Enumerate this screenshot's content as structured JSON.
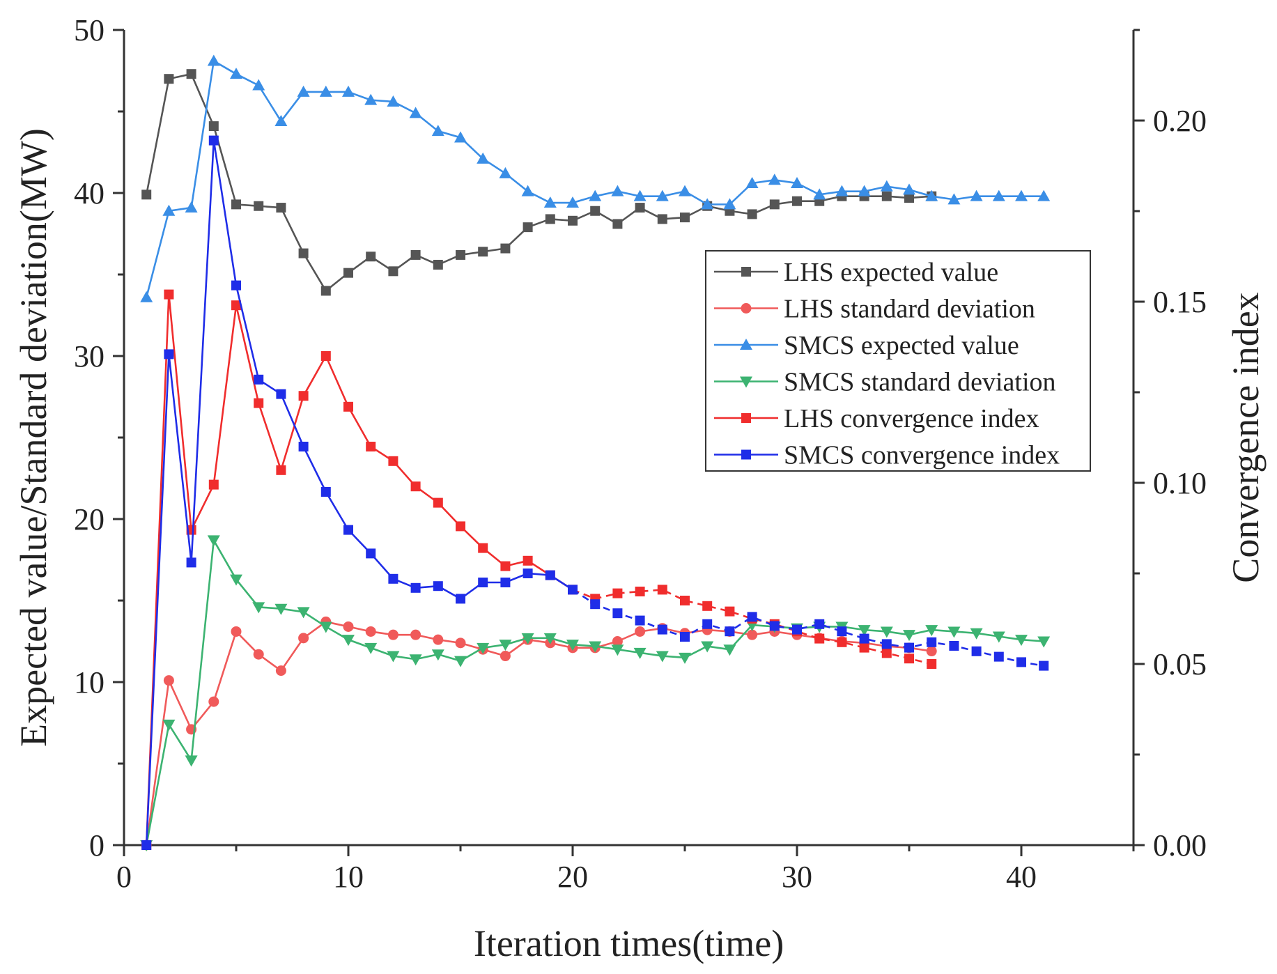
{
  "chart_data": {
    "type": "line",
    "title": "",
    "xlabel": "Iteration times(time)",
    "ylabel": "Expected value/Standard deviation(MW)",
    "y2label": "Convergence index",
    "xlim": [
      0,
      45
    ],
    "ylim": [
      0,
      50
    ],
    "y2lim": [
      0,
      0.225
    ],
    "x_ticks": [
      0,
      10,
      20,
      30,
      40
    ],
    "y_ticks": [
      0,
      10,
      20,
      30,
      40,
      50
    ],
    "y2_ticks": [
      0.0,
      0.05,
      0.1,
      0.15,
      0.2
    ],
    "y2_tick_labels": [
      "0.00",
      "0.05",
      "0.10",
      "0.15",
      "0.20"
    ],
    "legend_position": "center-right",
    "series": [
      {
        "name": "LHS expected value",
        "axis": "left",
        "color": "#555555",
        "marker": "square",
        "dashed_from_index": null,
        "x": [
          1,
          2,
          3,
          4,
          5,
          6,
          7,
          8,
          9,
          10,
          11,
          12,
          13,
          14,
          15,
          16,
          17,
          18,
          19,
          20,
          21,
          22,
          23,
          24,
          25,
          26,
          27,
          28,
          29,
          30,
          31,
          32,
          33,
          34,
          35,
          36
        ],
        "values": [
          39.9,
          47.0,
          47.3,
          44.1,
          39.3,
          39.2,
          39.1,
          36.3,
          34.0,
          35.1,
          36.1,
          35.2,
          36.2,
          35.6,
          36.2,
          36.4,
          36.6,
          37.9,
          38.4,
          38.3,
          38.9,
          38.1,
          39.1,
          38.4,
          38.5,
          39.2,
          38.9,
          38.7,
          39.3,
          39.5,
          39.5,
          39.8,
          39.8,
          39.8,
          39.7,
          39.8
        ]
      },
      {
        "name": "LHS standard deviation",
        "axis": "left",
        "color": "#f05a5a",
        "marker": "circle",
        "dashed_from_index": null,
        "x": [
          1,
          2,
          3,
          4,
          5,
          6,
          7,
          8,
          9,
          10,
          11,
          12,
          13,
          14,
          15,
          16,
          17,
          18,
          19,
          20,
          21,
          22,
          23,
          24,
          25,
          26,
          27,
          28,
          29,
          30,
          31,
          32,
          33,
          34,
          35,
          36
        ],
        "values": [
          0,
          10.1,
          7.1,
          8.8,
          13.1,
          11.7,
          10.7,
          12.7,
          13.7,
          13.4,
          13.1,
          12.9,
          12.9,
          12.6,
          12.4,
          12.0,
          11.6,
          12.6,
          12.4,
          12.1,
          12.1,
          12.5,
          13.1,
          13.3,
          13.0,
          13.2,
          13.1,
          12.9,
          13.1,
          12.9,
          12.7,
          12.5,
          12.4,
          12.2,
          12.1,
          11.9
        ]
      },
      {
        "name": "SMCS expected value",
        "axis": "left",
        "color": "#3a8ee6",
        "marker": "triangle-up",
        "dashed_from_index": null,
        "x": [
          1,
          2,
          3,
          4,
          5,
          6,
          7,
          8,
          9,
          10,
          11,
          12,
          13,
          14,
          15,
          16,
          17,
          18,
          19,
          20,
          21,
          22,
          23,
          24,
          25,
          26,
          27,
          28,
          29,
          30,
          31,
          32,
          33,
          34,
          35,
          36,
          37,
          38,
          39,
          40,
          41
        ],
        "values": [
          33.6,
          38.9,
          39.1,
          48.1,
          47.3,
          46.6,
          44.4,
          46.2,
          46.2,
          46.2,
          45.7,
          45.6,
          44.9,
          43.8,
          43.4,
          42.1,
          41.2,
          40.1,
          39.4,
          39.4,
          39.8,
          40.1,
          39.8,
          39.8,
          40.1,
          39.3,
          39.3,
          40.6,
          40.8,
          40.6,
          39.9,
          40.1,
          40.1,
          40.4,
          40.2,
          39.8,
          39.6,
          39.8,
          39.8,
          39.8,
          39.8
        ]
      },
      {
        "name": "SMCS standard deviation",
        "axis": "left",
        "color": "#3cb371",
        "marker": "triangle-down",
        "dashed_from_index": null,
        "x": [
          1,
          2,
          3,
          4,
          5,
          6,
          7,
          8,
          9,
          10,
          11,
          12,
          13,
          14,
          15,
          16,
          17,
          18,
          19,
          20,
          21,
          22,
          23,
          24,
          25,
          26,
          27,
          28,
          29,
          30,
          31,
          32,
          33,
          34,
          35,
          36,
          37,
          38,
          39,
          40,
          41
        ],
        "values": [
          0,
          7.4,
          5.2,
          18.7,
          16.3,
          14.6,
          14.5,
          14.3,
          13.4,
          12.6,
          12.1,
          11.6,
          11.4,
          11.7,
          11.3,
          12.1,
          12.3,
          12.7,
          12.7,
          12.3,
          12.2,
          12.0,
          11.8,
          11.6,
          11.5,
          12.2,
          12.0,
          13.5,
          13.4,
          13.3,
          13.4,
          13.4,
          13.2,
          13.1,
          12.9,
          13.2,
          13.1,
          13.0,
          12.8,
          12.6,
          12.5
        ]
      },
      {
        "name": "LHS convergence index",
        "axis": "right",
        "color": "#f02d2d",
        "marker": "square",
        "dashed_from_index": 19,
        "x": [
          1,
          2,
          3,
          4,
          5,
          6,
          7,
          8,
          9,
          10,
          11,
          12,
          13,
          14,
          15,
          16,
          17,
          18,
          19,
          20,
          21,
          22,
          23,
          24,
          25,
          26,
          27,
          28,
          29,
          30,
          31,
          32,
          33,
          34,
          35,
          36
        ],
        "values": [
          0,
          0.152,
          0.087,
          0.0995,
          0.149,
          0.122,
          0.1035,
          0.124,
          0.135,
          0.121,
          0.11,
          0.106,
          0.099,
          0.0945,
          0.088,
          0.082,
          0.077,
          0.0785,
          0.0745,
          0.0705,
          0.068,
          0.0695,
          0.07,
          0.0705,
          0.0675,
          0.066,
          0.0645,
          0.0625,
          0.061,
          0.059,
          0.057,
          0.056,
          0.0545,
          0.053,
          0.0515,
          0.05
        ]
      },
      {
        "name": "SMCS convergence index",
        "axis": "right",
        "color": "#1f2de8",
        "marker": "square",
        "dashed_from_index": 19,
        "x": [
          1,
          2,
          3,
          4,
          5,
          6,
          7,
          8,
          9,
          10,
          11,
          12,
          13,
          14,
          15,
          16,
          17,
          18,
          19,
          20,
          21,
          22,
          23,
          24,
          25,
          26,
          27,
          28,
          29,
          30,
          31,
          32,
          33,
          34,
          35,
          36,
          37,
          38,
          39,
          40,
          41
        ],
        "values": [
          0,
          0.1355,
          0.078,
          0.1945,
          0.1545,
          0.1285,
          0.1245,
          0.11,
          0.0975,
          0.087,
          0.0805,
          0.0735,
          0.071,
          0.0715,
          0.068,
          0.0725,
          0.0725,
          0.075,
          0.0745,
          0.0705,
          0.0665,
          0.064,
          0.062,
          0.0595,
          0.0575,
          0.061,
          0.059,
          0.063,
          0.0605,
          0.0595,
          0.061,
          0.059,
          0.057,
          0.0555,
          0.0545,
          0.056,
          0.055,
          0.0535,
          0.052,
          0.0505,
          0.0495
        ]
      }
    ]
  }
}
